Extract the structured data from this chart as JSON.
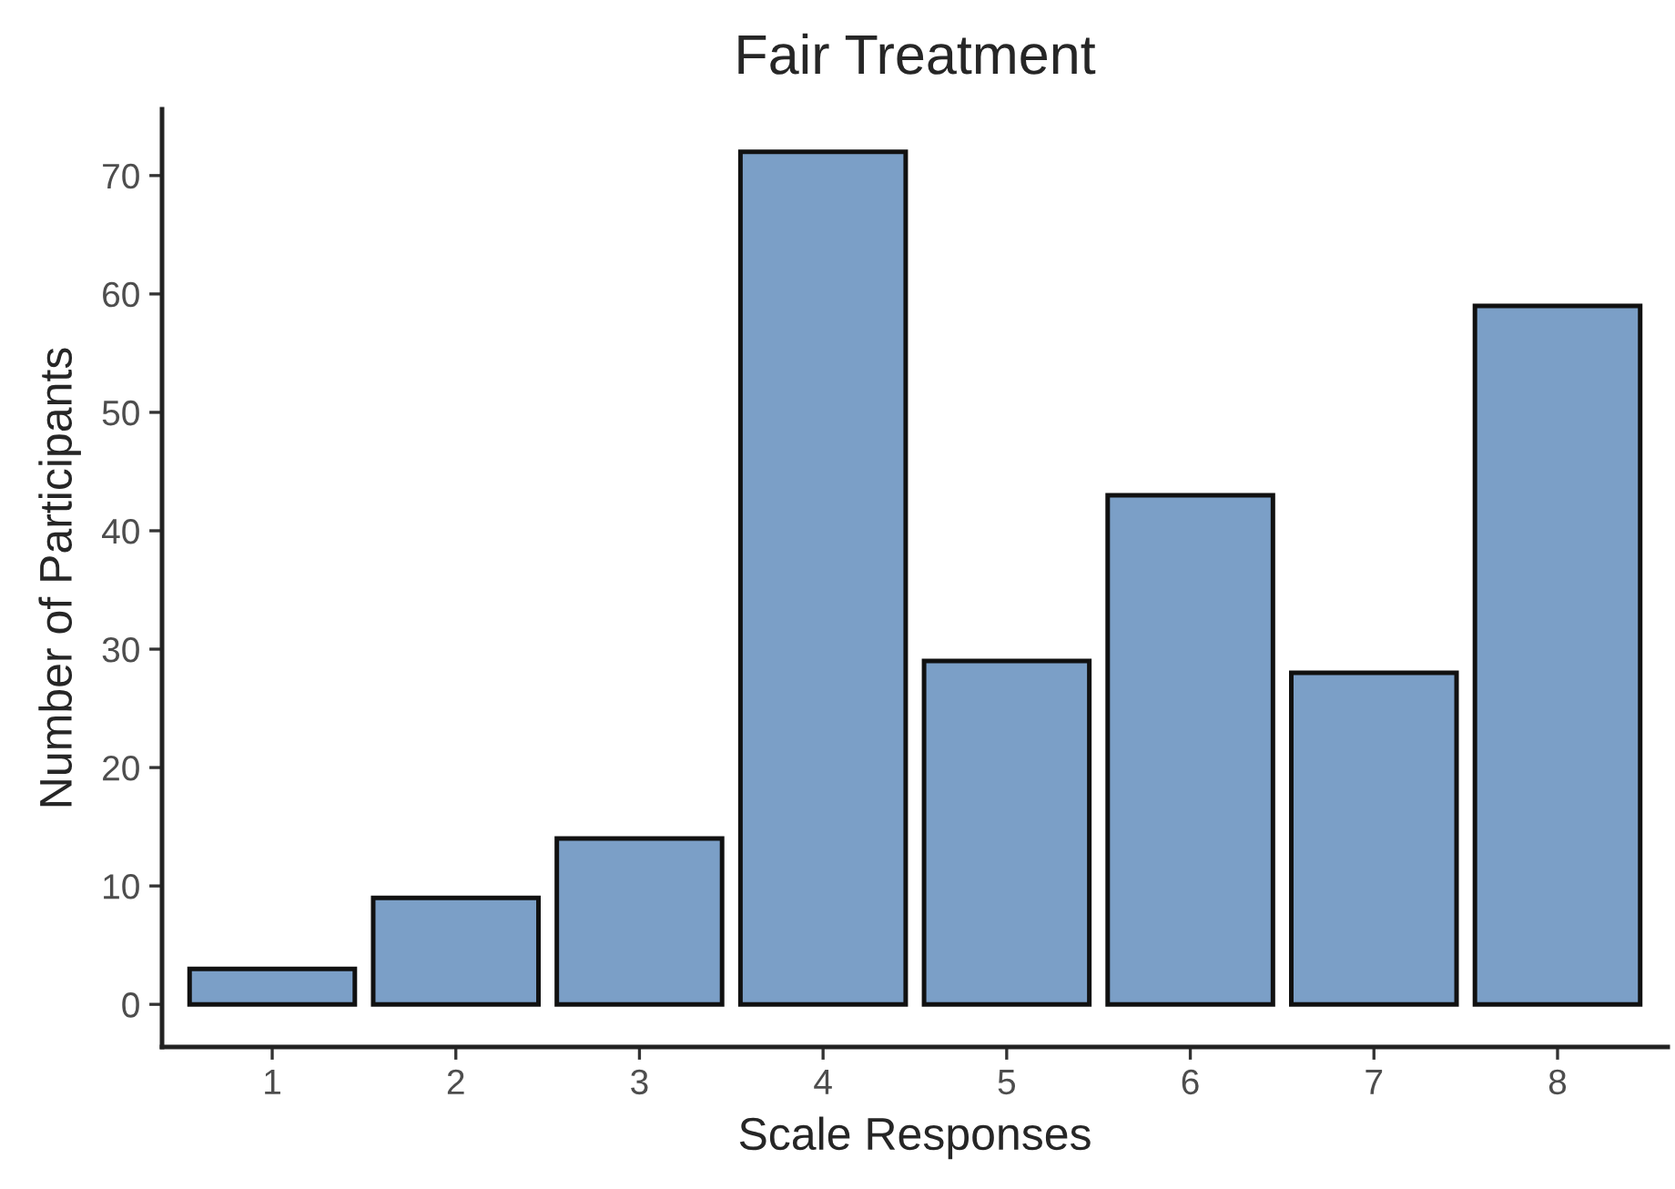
{
  "chart_data": {
    "type": "bar",
    "title": "Fair Treatment",
    "xlabel": "Scale Responses",
    "ylabel": "Number of Participants",
    "categories": [
      "1",
      "2",
      "3",
      "4",
      "5",
      "6",
      "7",
      "8"
    ],
    "values": [
      3,
      9,
      14,
      72,
      29,
      43,
      28,
      59
    ],
    "color": "#7b9fc7",
    "ylim": [
      -3.6,
      75.6
    ],
    "yticks": [
      0,
      10,
      20,
      30,
      40,
      50,
      60,
      70
    ],
    "grid": false,
    "legend": false
  }
}
